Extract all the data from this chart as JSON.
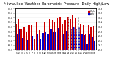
{
  "title": "Milwaukee Weather Barometric Pressure  Daily High/Low",
  "title_fontsize": 3.8,
  "ylim": [
    29.0,
    30.8
  ],
  "yticks": [
    29.0,
    29.2,
    29.4,
    29.6,
    29.8,
    30.0,
    30.2,
    30.4,
    30.6,
    30.8
  ],
  "bar_width": 0.42,
  "background_color": "#ffffff",
  "high_color": "#cc0000",
  "low_color": "#0000cc",
  "dashed_color": "#aaaaaa",
  "highs": [
    30.14,
    30.34,
    29.9,
    30.0,
    29.8,
    30.1,
    30.1,
    29.5,
    30.2,
    29.85,
    30.18,
    30.22,
    30.12,
    30.36,
    30.28,
    30.22,
    30.42,
    30.44,
    30.14,
    30.3,
    30.44,
    30.36,
    30.5,
    30.38,
    30.48,
    30.14,
    30.1,
    29.7,
    30.12,
    30.02,
    30.04
  ],
  "lows": [
    29.72,
    29.88,
    29.54,
    29.62,
    29.44,
    29.7,
    29.58,
    29.02,
    29.68,
    29.46,
    29.74,
    29.78,
    29.68,
    29.9,
    29.8,
    29.76,
    29.96,
    29.98,
    29.7,
    29.84,
    29.96,
    29.88,
    30.02,
    29.9,
    30.0,
    29.68,
    29.66,
    29.24,
    29.68,
    29.56,
    29.42
  ],
  "xlabels": [
    "1",
    "2",
    "3",
    "4",
    "5",
    "6",
    "7",
    "8",
    "9",
    "10",
    "11",
    "12",
    "13",
    "14",
    "15",
    "16",
    "17",
    "18",
    "19",
    "20",
    "21",
    "22",
    "23",
    "24",
    "25",
    "26",
    "27",
    "28",
    "29",
    "30",
    "31"
  ],
  "dashed_indices": [
    20,
    21,
    22,
    23,
    24
  ],
  "legend_high": "High",
  "legend_low": "Low"
}
